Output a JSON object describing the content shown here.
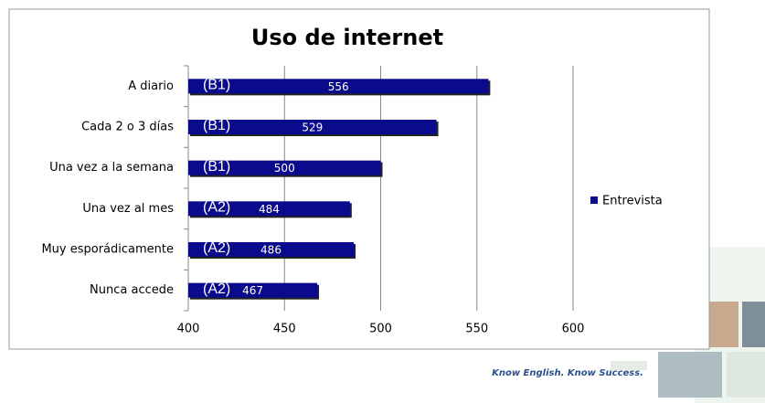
{
  "chart_data": {
    "type": "bar",
    "orientation": "horizontal",
    "title": "Uso de internet",
    "categories": [
      "A diario",
      "Cada 2 o 3 días",
      "Una vez a la semana",
      "Una vez al mes",
      "Muy esporádicamente",
      "Nunca accede"
    ],
    "series": [
      {
        "name": "Entrevista",
        "color": "#0a0a8c",
        "values": [
          556,
          529,
          500,
          484,
          486,
          467
        ]
      }
    ],
    "annotations": [
      "(B1)",
      "(B1)",
      "(B1)",
      "(A2)",
      "(A2)",
      "(A2)"
    ],
    "xlim": [
      400,
      600
    ],
    "xticks": [
      400,
      450,
      500,
      550,
      600
    ],
    "grid": true,
    "legend": "right"
  },
  "footer": {
    "tagline": "Know English. Know Success."
  }
}
